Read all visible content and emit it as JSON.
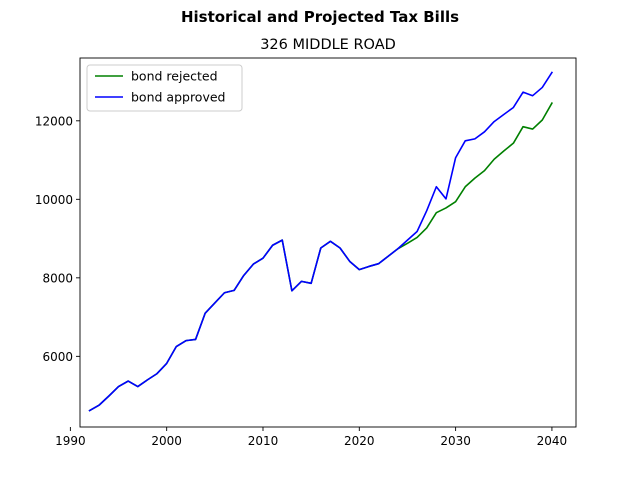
{
  "chart_data": {
    "type": "line",
    "suptitle": "Historical and Projected Tax Bills",
    "title": "326 MIDDLE ROAD",
    "xlabel": "",
    "ylabel": "",
    "xlim": [
      1991,
      2042.5
    ],
    "ylim": [
      4200,
      13600
    ],
    "xticks": [
      1990,
      2000,
      2010,
      2020,
      2030,
      2040
    ],
    "yticks": [
      6000,
      8000,
      10000,
      12000
    ],
    "legend_position": "upper-left",
    "grid": false,
    "series": [
      {
        "name": "bond rejected",
        "color": "#008000",
        "x": [
          1992,
          1993,
          1994,
          1995,
          1996,
          1997,
          1998,
          1999,
          2000,
          2001,
          2002,
          2003,
          2004,
          2005,
          2006,
          2007,
          2008,
          2009,
          2010,
          2011,
          2012,
          2013,
          2014,
          2015,
          2016,
          2017,
          2018,
          2019,
          2020,
          2021,
          2022,
          2023,
          2024,
          2025,
          2026,
          2027,
          2028,
          2029,
          2030,
          2031,
          2032,
          2033,
          2034,
          2035,
          2036,
          2037,
          2038,
          2039,
          2040
        ],
        "values": [
          4620,
          4760,
          4990,
          5230,
          5370,
          5230,
          5400,
          5560,
          5820,
          6250,
          6400,
          6430,
          7100,
          7360,
          7620,
          7680,
          8060,
          8350,
          8500,
          8830,
          8960,
          7670,
          7910,
          7860,
          8760,
          8930,
          8760,
          8420,
          8210,
          8290,
          8360,
          8550,
          8740,
          8880,
          9030,
          9270,
          9660,
          9780,
          9940,
          10320,
          10540,
          10730,
          11020,
          11230,
          11430,
          11850,
          11790,
          12020,
          12450
        ]
      },
      {
        "name": "bond approved",
        "color": "#0000ff",
        "x": [
          1992,
          1993,
          1994,
          1995,
          1996,
          1997,
          1998,
          1999,
          2000,
          2001,
          2002,
          2003,
          2004,
          2005,
          2006,
          2007,
          2008,
          2009,
          2010,
          2011,
          2012,
          2013,
          2014,
          2015,
          2016,
          2017,
          2018,
          2019,
          2020,
          2021,
          2022,
          2023,
          2024,
          2025,
          2026,
          2027,
          2028,
          2029,
          2030,
          2031,
          2032,
          2033,
          2034,
          2035,
          2036,
          2037,
          2038,
          2039,
          2040
        ],
        "values": [
          4620,
          4760,
          4990,
          5230,
          5370,
          5230,
          5400,
          5560,
          5820,
          6250,
          6400,
          6430,
          7100,
          7360,
          7620,
          7680,
          8060,
          8350,
          8500,
          8830,
          8960,
          7670,
          7910,
          7860,
          8760,
          8930,
          8760,
          8420,
          8210,
          8290,
          8360,
          8550,
          8740,
          8960,
          9180,
          9710,
          10320,
          10010,
          11060,
          11490,
          11540,
          11720,
          11980,
          12160,
          12340,
          12730,
          12640,
          12850,
          13230
        ]
      }
    ]
  }
}
